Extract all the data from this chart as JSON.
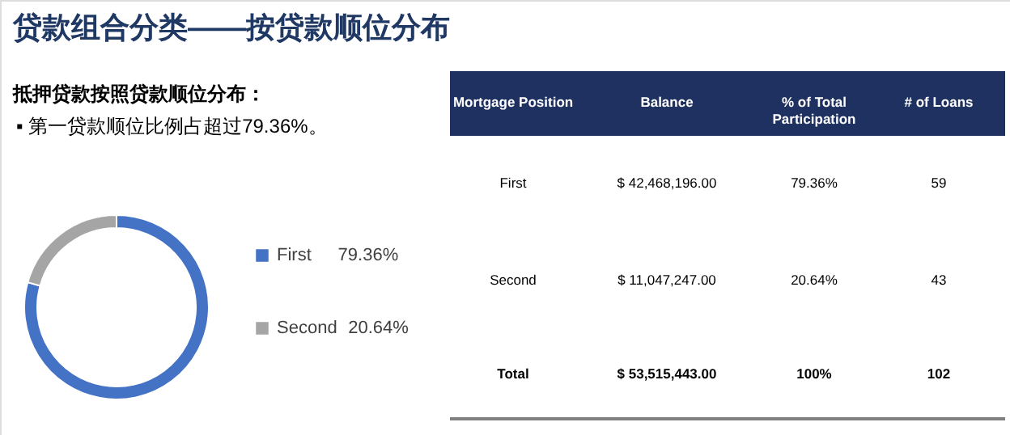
{
  "chart_data": [
    {
      "type": "donut",
      "title": "贷款组合分类——按贷款顺位分布",
      "subtitle": "抵押贷款按照贷款顺位分布：",
      "annotations": [
        "▪ 第一贷款顺位比例占超过79.36%。"
      ],
      "categories": [
        "First",
        "Second"
      ],
      "values": [
        79.36,
        20.64
      ],
      "colors": [
        "#4472c4",
        "#a5a5a5"
      ],
      "value_labels": [
        "79.36%",
        "20.64%"
      ],
      "legend": "right"
    },
    {
      "type": "other",
      "annotations": [
        "Mortgage Position",
        "Balance",
        "% of Total\nParticipation",
        "# of Loans",
        "First",
        "$  42,468,196.00",
        "79.36%",
        "59",
        "Second",
        "$  11,047,247.00",
        "20.64%",
        "43",
        "Total",
        "$  53,515,443.00",
        "100%",
        "102"
      ]
    }
  ]
}
